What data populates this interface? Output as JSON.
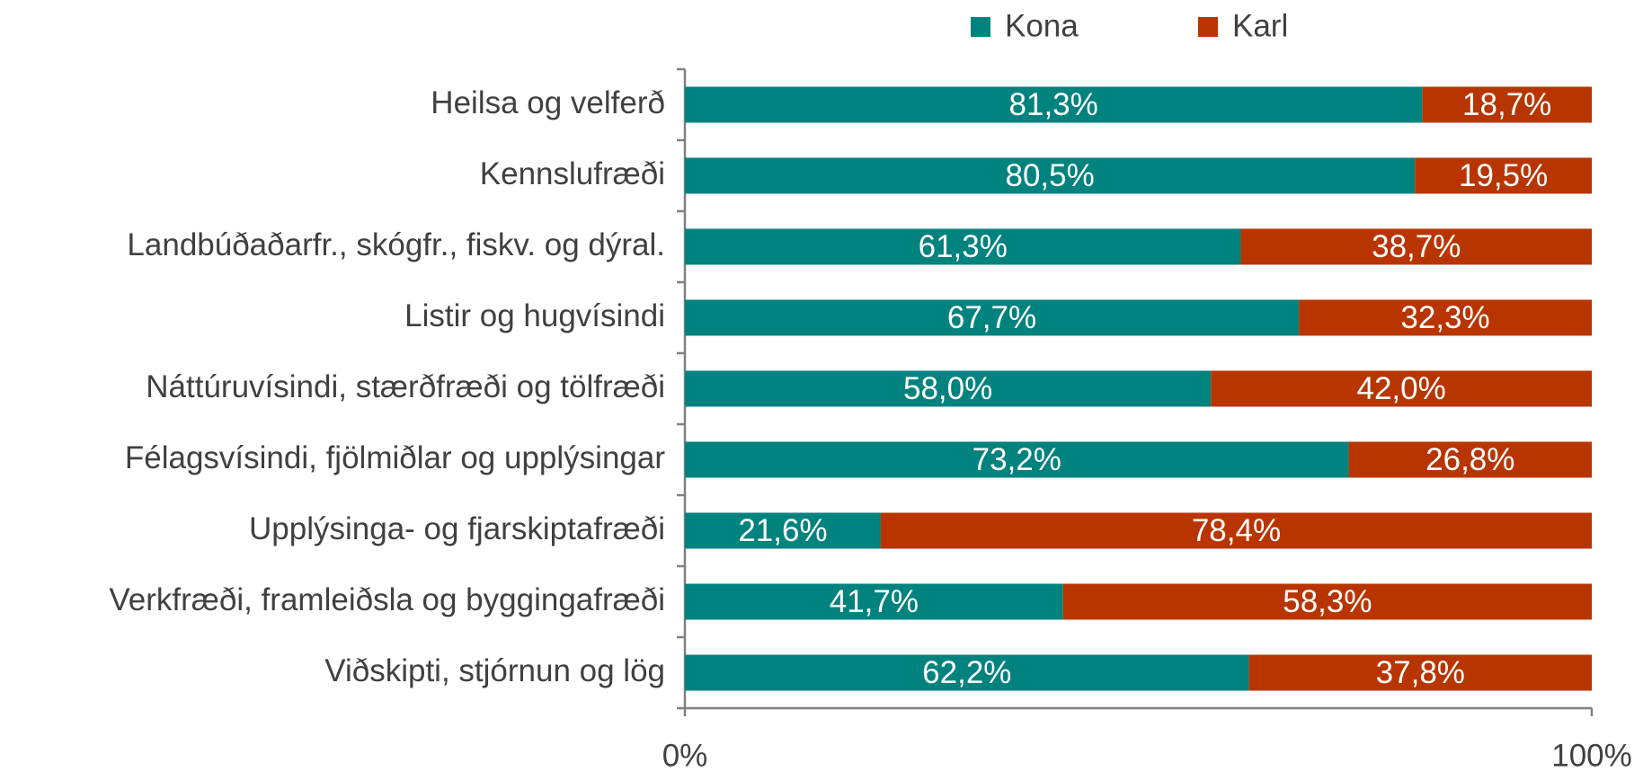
{
  "chart_data": {
    "type": "stacked_bar_horizontal",
    "categories": [
      "Heilsa og velferð",
      "Kennslufræði",
      "Landbúðaðarfr., skógfr., fiskv. og dýral.",
      "Listir og hugvísindi ",
      "Náttúruvísindi, stærðfræði og tölfræði",
      "Félagsvísindi, fjölmiðlar og upplýsingar",
      "Upplýsinga- og fjarskiptafræði",
      "Verkfræði, framleiðsla og byggingafræði",
      "Viðskipti, stjórnun og lög"
    ],
    "series": [
      {
        "name": "Kona",
        "color": "#00827f",
        "values": [
          81.3,
          80.5,
          61.3,
          67.7,
          58.0,
          73.2,
          21.6,
          41.7,
          62.2
        ],
        "value_labels": [
          "81,3%",
          "80,5%",
          "61,3%",
          "67,7%",
          "58,0%",
          "73,2%",
          "21,6%",
          "41,7%",
          "62,2%"
        ]
      },
      {
        "name": "Karl",
        "color": "#b83500",
        "values": [
          18.7,
          19.5,
          38.7,
          32.3,
          42.0,
          26.8,
          78.4,
          58.3,
          37.8
        ],
        "value_labels": [
          "18,7%",
          "19,5%",
          "38,7%",
          "32,3%",
          "42,0%",
          "26,8%",
          "78,4%",
          "58,3%",
          "37,8%"
        ]
      }
    ],
    "xlim": [
      0,
      100
    ],
    "xticks": [
      {
        "value": 0,
        "label": "0%"
      },
      {
        "value": 100,
        "label": "100%"
      }
    ],
    "legend": "top"
  }
}
